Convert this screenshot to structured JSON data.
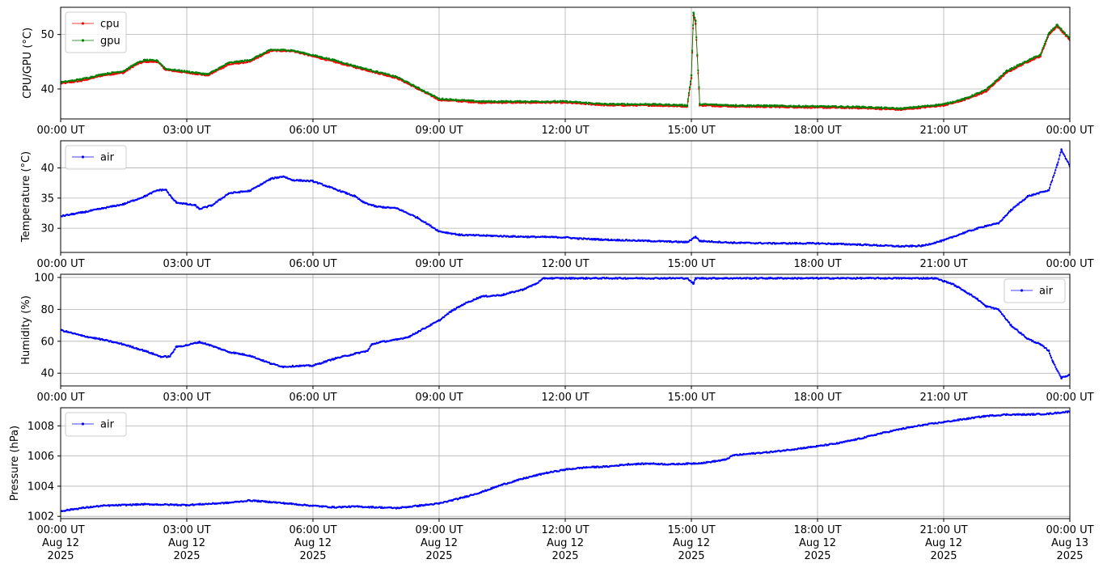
{
  "chart_data": [
    {
      "type": "scatter",
      "ylabel": "CPU/GPU (°C)",
      "ylim": [
        34.5,
        55
      ],
      "yticks": [
        40,
        50
      ],
      "xlim": [
        "2025-08-12T00:00",
        "2025-08-13T00:00"
      ],
      "xtick_labels": [
        "00:00 UT",
        "03:00 UT",
        "06:00 UT",
        "09:00 UT",
        "12:00 UT",
        "15:00 UT",
        "18:00 UT",
        "21:00 UT",
        "00:00 UT"
      ],
      "grid": true,
      "legend": "upper left",
      "series": [
        {
          "name": "cpu",
          "color": "#ff0000",
          "points": [
            [
              0,
              41
            ],
            [
              0.5,
              41.5
            ],
            [
              1,
              42.5
            ],
            [
              1.5,
              43
            ],
            [
              1.8,
              44.5
            ],
            [
              2,
              45
            ],
            [
              2.3,
              45
            ],
            [
              2.5,
              43.5
            ],
            [
              3,
              43
            ],
            [
              3.5,
              42.5
            ],
            [
              4,
              44.5
            ],
            [
              4.5,
              45
            ],
            [
              5,
              47
            ],
            [
              5.5,
              47
            ],
            [
              6,
              46
            ],
            [
              6.5,
              45
            ],
            [
              7,
              44
            ],
            [
              7.5,
              43
            ],
            [
              8,
              42
            ],
            [
              8.5,
              40
            ],
            [
              9,
              38
            ],
            [
              10,
              37.5
            ],
            [
              11,
              37.5
            ],
            [
              12,
              37.5
            ],
            [
              13,
              37
            ],
            [
              14,
              37
            ],
            [
              14.9,
              36.8
            ],
            [
              15,
              42
            ],
            [
              15.05,
              53.5
            ],
            [
              15.1,
              52
            ],
            [
              15.2,
              37
            ],
            [
              16,
              36.8
            ],
            [
              17,
              36.7
            ],
            [
              18,
              36.6
            ],
            [
              19,
              36.5
            ],
            [
              20,
              36.2
            ],
            [
              21,
              37
            ],
            [
              21.5,
              38
            ],
            [
              22,
              39.5
            ],
            [
              22.5,
              43
            ],
            [
              23,
              45
            ],
            [
              23.3,
              46
            ],
            [
              23.5,
              50
            ],
            [
              23.7,
              51.5
            ],
            [
              24,
              49
            ]
          ]
        },
        {
          "name": "gpu",
          "color": "#008000",
          "points": [
            [
              0,
              41.2
            ],
            [
              0.5,
              41.8
            ],
            [
              1,
              42.7
            ],
            [
              1.5,
              43.3
            ],
            [
              1.8,
              44.7
            ],
            [
              2,
              45.3
            ],
            [
              2.3,
              45.2
            ],
            [
              2.5,
              43.7
            ],
            [
              3,
              43.2
            ],
            [
              3.5,
              42.7
            ],
            [
              4,
              44.8
            ],
            [
              4.5,
              45.3
            ],
            [
              5,
              47.2
            ],
            [
              5.5,
              47.1
            ],
            [
              6,
              46.2
            ],
            [
              6.5,
              45.3
            ],
            [
              7,
              44.2
            ],
            [
              7.5,
              43.2
            ],
            [
              8,
              42.2
            ],
            [
              8.5,
              40.2
            ],
            [
              9,
              38.2
            ],
            [
              10,
              37.7
            ],
            [
              11,
              37.7
            ],
            [
              12,
              37.7
            ],
            [
              13,
              37.2
            ],
            [
              14,
              37.2
            ],
            [
              14.9,
              37
            ],
            [
              15,
              42.5
            ],
            [
              15.05,
              54
            ],
            [
              15.1,
              52.5
            ],
            [
              15.2,
              37.2
            ],
            [
              16,
              37
            ],
            [
              17,
              36.9
            ],
            [
              18,
              36.8
            ],
            [
              19,
              36.7
            ],
            [
              20,
              36.4
            ],
            [
              21,
              37.2
            ],
            [
              21.5,
              38.2
            ],
            [
              22,
              39.8
            ],
            [
              22.5,
              43.3
            ],
            [
              23,
              45.2
            ],
            [
              23.3,
              46.3
            ],
            [
              23.5,
              50.2
            ],
            [
              23.7,
              51.8
            ],
            [
              24,
              49.2
            ]
          ]
        }
      ]
    },
    {
      "type": "scatter",
      "ylabel": "Temperature (°C)",
      "ylim": [
        26,
        44.5
      ],
      "yticks": [
        30,
        35,
        40
      ],
      "xlim": [
        "2025-08-12T00:00",
        "2025-08-13T00:00"
      ],
      "xtick_labels": [
        "00:00 UT",
        "03:00 UT",
        "06:00 UT",
        "09:00 UT",
        "12:00 UT",
        "15:00 UT",
        "18:00 UT",
        "21:00 UT",
        "00:00 UT"
      ],
      "grid": true,
      "legend": "upper left",
      "series": [
        {
          "name": "air",
          "color": "#0000ff",
          "points": [
            [
              0,
              32
            ],
            [
              0.5,
              32.6
            ],
            [
              1,
              33.3
            ],
            [
              1.5,
              34
            ],
            [
              2,
              35.3
            ],
            [
              2.3,
              36.3
            ],
            [
              2.5,
              36.4
            ],
            [
              2.65,
              35
            ],
            [
              2.75,
              34.3
            ],
            [
              3,
              34
            ],
            [
              3.2,
              33.8
            ],
            [
              3.3,
              33.2
            ],
            [
              3.6,
              33.8
            ],
            [
              4,
              35.8
            ],
            [
              4.5,
              36.2
            ],
            [
              5,
              38.2
            ],
            [
              5.3,
              38.6
            ],
            [
              5.5,
              38
            ],
            [
              6,
              37.8
            ],
            [
              6.4,
              36.8
            ],
            [
              6.8,
              35.8
            ],
            [
              7,
              35.3
            ],
            [
              7.2,
              34.3
            ],
            [
              7.5,
              33.6
            ],
            [
              8,
              33.3
            ],
            [
              8.5,
              31.7
            ],
            [
              9,
              29.5
            ],
            [
              9.5,
              28.9
            ],
            [
              10,
              28.8
            ],
            [
              11,
              28.6
            ],
            [
              12,
              28.5
            ],
            [
              12.3,
              28.3
            ],
            [
              13,
              28.1
            ],
            [
              14,
              27.9
            ],
            [
              14.9,
              27.7
            ],
            [
              15.1,
              28.6
            ],
            [
              15.2,
              27.9
            ],
            [
              16,
              27.6
            ],
            [
              17,
              27.5
            ],
            [
              18,
              27.5
            ],
            [
              19,
              27.3
            ],
            [
              20,
              27
            ],
            [
              20.5,
              27.1
            ],
            [
              21,
              28
            ],
            [
              21.5,
              29.3
            ],
            [
              22,
              30.4
            ],
            [
              22.3,
              30.8
            ],
            [
              22.6,
              33
            ],
            [
              23,
              35.3
            ],
            [
              23.5,
              36.3
            ],
            [
              23.7,
              40.5
            ],
            [
              23.8,
              43
            ],
            [
              24,
              40.3
            ]
          ]
        }
      ]
    },
    {
      "type": "scatter",
      "ylabel": "Humidity (%)",
      "ylim": [
        32,
        102
      ],
      "yticks": [
        40,
        60,
        80,
        100
      ],
      "xlim": [
        "2025-08-12T00:00",
        "2025-08-13T00:00"
      ],
      "xtick_labels": [
        "00:00 UT",
        "03:00 UT",
        "06:00 UT",
        "09:00 UT",
        "12:00 UT",
        "15:00 UT",
        "18:00 UT",
        "21:00 UT",
        "00:00 UT"
      ],
      "grid": true,
      "legend": "upper right",
      "series": [
        {
          "name": "air",
          "color": "#0000ff",
          "points": [
            [
              0,
              67
            ],
            [
              0.5,
              63.5
            ],
            [
              1,
              61
            ],
            [
              1.5,
              58
            ],
            [
              2,
              54
            ],
            [
              2.4,
              50.2
            ],
            [
              2.6,
              50.5
            ],
            [
              2.75,
              56.5
            ],
            [
              3,
              57.5
            ],
            [
              3.3,
              59.5
            ],
            [
              3.5,
              58
            ],
            [
              4,
              53.3
            ],
            [
              4.5,
              51
            ],
            [
              5,
              46
            ],
            [
              5.3,
              44
            ],
            [
              5.6,
              44.5
            ],
            [
              6,
              44.7
            ],
            [
              6.5,
              49
            ],
            [
              7,
              52.2
            ],
            [
              7.3,
              54
            ],
            [
              7.4,
              58
            ],
            [
              7.6,
              59.5
            ],
            [
              8,
              61
            ],
            [
              8.3,
              63
            ],
            [
              8.5,
              66
            ],
            [
              9,
              73
            ],
            [
              9.3,
              79
            ],
            [
              9.6,
              83.5
            ],
            [
              10,
              88
            ],
            [
              10.5,
              89
            ],
            [
              11,
              92.5
            ],
            [
              11.3,
              96
            ],
            [
              11.5,
              99.5
            ],
            [
              14.9,
              99.5
            ],
            [
              15.05,
              96
            ],
            [
              15.1,
              99.5
            ],
            [
              20.8,
              99.5
            ],
            [
              21.2,
              96
            ],
            [
              21.5,
              91.5
            ],
            [
              21.8,
              86.5
            ],
            [
              22,
              82
            ],
            [
              22.3,
              80
            ],
            [
              22.6,
              70
            ],
            [
              23,
              61.5
            ],
            [
              23.3,
              58
            ],
            [
              23.5,
              54
            ],
            [
              23.6,
              47
            ],
            [
              23.8,
              37
            ],
            [
              24,
              39
            ]
          ]
        }
      ]
    },
    {
      "type": "scatter",
      "ylabel": "Pressure (hPa)",
      "ylim": [
        1001.85,
        1009.2
      ],
      "yticks": [
        1002,
        1004,
        1006,
        1008
      ],
      "xlim": [
        "2025-08-12T00:00",
        "2025-08-13T00:00"
      ],
      "xtick_labels": [
        "00:00 UT\nAug 12\n2025",
        "03:00 UT\nAug 12\n2025",
        "06:00 UT\nAug 12\n2025",
        "09:00 UT\nAug 12\n2025",
        "12:00 UT\nAug 12\n2025",
        "15:00 UT\nAug 12\n2025",
        "18:00 UT\nAug 12\n2025",
        "21:00 UT\nAug 12\n2025",
        "00:00 UT\nAug 13\n2025"
      ],
      "grid": true,
      "legend": "upper left",
      "series": [
        {
          "name": "air",
          "color": "#0000ff",
          "points": [
            [
              0,
              1002.35
            ],
            [
              0.5,
              1002.55
            ],
            [
              1,
              1002.7
            ],
            [
              2,
              1002.8
            ],
            [
              3,
              1002.75
            ],
            [
              4,
              1002.9
            ],
            [
              4.5,
              1003.05
            ],
            [
              5,
              1002.95
            ],
            [
              6,
              1002.7
            ],
            [
              6.5,
              1002.6
            ],
            [
              7,
              1002.65
            ],
            [
              8,
              1002.55
            ],
            [
              8.5,
              1002.7
            ],
            [
              9,
              1002.85
            ],
            [
              9.5,
              1003.2
            ],
            [
              10,
              1003.6
            ],
            [
              10.5,
              1004.1
            ],
            [
              11,
              1004.5
            ],
            [
              11.5,
              1004.85
            ],
            [
              12,
              1005.1
            ],
            [
              12.5,
              1005.25
            ],
            [
              13,
              1005.3
            ],
            [
              13.5,
              1005.45
            ],
            [
              14,
              1005.5
            ],
            [
              14.5,
              1005.45
            ],
            [
              15,
              1005.5
            ],
            [
              15.3,
              1005.55
            ],
            [
              15.8,
              1005.75
            ],
            [
              16,
              1006.05
            ],
            [
              17,
              1006.3
            ],
            [
              18,
              1006.65
            ],
            [
              18.5,
              1006.85
            ],
            [
              19,
              1007.15
            ],
            [
              19.5,
              1007.5
            ],
            [
              20,
              1007.8
            ],
            [
              20.5,
              1008.05
            ],
            [
              21,
              1008.25
            ],
            [
              21.5,
              1008.45
            ],
            [
              22,
              1008.65
            ],
            [
              22.5,
              1008.75
            ],
            [
              23,
              1008.75
            ],
            [
              23.5,
              1008.8
            ],
            [
              24,
              1008.95
            ]
          ]
        }
      ]
    }
  ]
}
